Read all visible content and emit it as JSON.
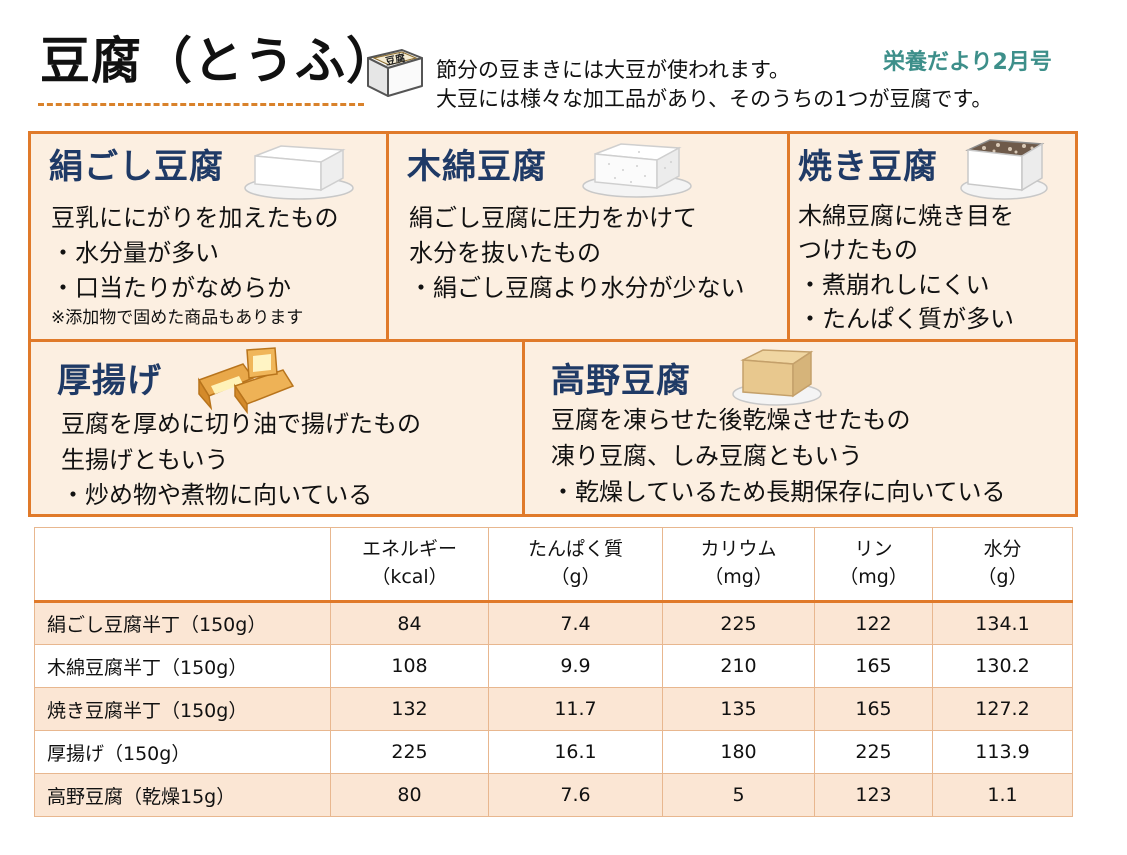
{
  "header": {
    "title": "豆腐（とうふ）",
    "box_label": "豆腐",
    "intro_line1": "節分の豆まきには大豆が使われます。",
    "intro_line2": "大豆には様々な加工品があり、そのうちの1つが豆腐です。",
    "newsletter": "栄養だより2月号"
  },
  "panels": {
    "kinugoshi": {
      "title": "絹ごし豆腐",
      "lines": [
        "豆乳ににがりを加えたもの",
        "・水分量が多い",
        "・口当たりがなめらか"
      ],
      "note": "※添加物で固めた商品もあります"
    },
    "momen": {
      "title": "木綿豆腐",
      "lines": [
        "絹ごし豆腐に圧力をかけて",
        "水分を抜いたもの",
        "・絹ごし豆腐より水分が少ない"
      ]
    },
    "yaki": {
      "title": "焼き豆腐",
      "lines": [
        "木綿豆腐に焼き目を",
        "つけたもの",
        "・煮崩れしにくい",
        "・たんぱく質が多い"
      ]
    },
    "atsuage": {
      "title": "厚揚げ",
      "lines": [
        "豆腐を厚めに切り油で揚げたもの",
        "生揚げともいう",
        "・炒め物や煮物に向いている"
      ]
    },
    "koya": {
      "title": "高野豆腐",
      "lines": [
        "豆腐を凍らせた後乾燥させたもの",
        "凍り豆腐、しみ豆腐ともいう",
        "・乾燥しているため長期保存に向いている"
      ]
    }
  },
  "table": {
    "headers": [
      {
        "label": "",
        "unit": ""
      },
      {
        "label": "エネルギー",
        "unit": "（kcal）"
      },
      {
        "label": "たんぱく質",
        "unit": "（g）"
      },
      {
        "label": "カリウム",
        "unit": "（mg）"
      },
      {
        "label": "リン",
        "unit": "（mg）"
      },
      {
        "label": "水分",
        "unit": "（g）"
      }
    ],
    "rows": [
      {
        "food": "絹ごし豆腐半丁（150g）",
        "energy": "84",
        "protein": "7.4",
        "potassium": "225",
        "phosphorus": "122",
        "water": "134.1"
      },
      {
        "food": "木綿豆腐半丁（150g）",
        "energy": "108",
        "protein": "9.9",
        "potassium": "210",
        "phosphorus": "165",
        "water": "130.2"
      },
      {
        "food": "焼き豆腐半丁（150g）",
        "energy": "132",
        "protein": "11.7",
        "potassium": "135",
        "phosphorus": "165",
        "water": "127.2"
      },
      {
        "food": "厚揚げ（150g）",
        "energy": "225",
        "protein": "16.1",
        "potassium": "180",
        "phosphorus": "225",
        "water": "113.9"
      },
      {
        "food": "高野豆腐（乾燥15g）",
        "energy": "80",
        "protein": "7.6",
        "potassium": "5",
        "phosphorus": "123",
        "water": "1.1"
      }
    ]
  },
  "colors": {
    "accent_orange": "#e07a2a",
    "panel_background": "#fcefe1",
    "heading_navy": "#1f3a66",
    "newsletter_teal": "#3d8f8a",
    "row_stripe": "#fbe6d4"
  },
  "icons": [
    "tofu-box-icon",
    "silken-tofu-icon",
    "firm-tofu-icon",
    "grilled-tofu-icon",
    "fried-tofu-icon",
    "koya-tofu-icon"
  ]
}
